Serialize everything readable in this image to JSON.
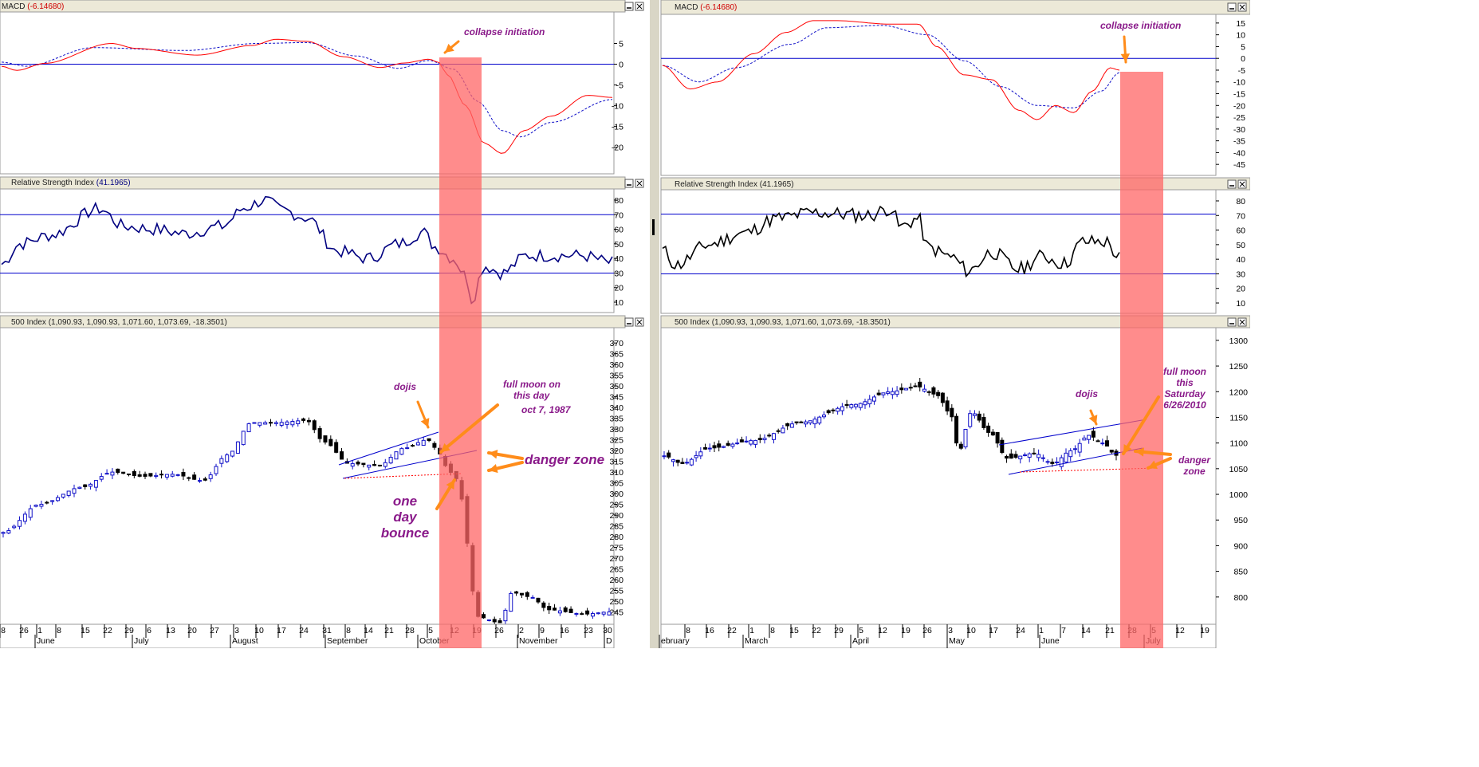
{
  "charts": [
    {
      "id": "left",
      "macd": {
        "title": "MACD",
        "value": "(-6.14680)",
        "yticks": [
          5,
          0,
          -5,
          -10,
          -15,
          -20
        ],
        "ylim": [
          -26,
          12
        ],
        "annotation": "collapse initiation"
      },
      "rsi": {
        "title": "Relative Strength Index",
        "value": "(41.1965)",
        "yticks": [
          80,
          70,
          60,
          50,
          40,
          30,
          20,
          10
        ],
        "ylim": [
          4,
          86
        ],
        "lines": [
          70,
          30
        ]
      },
      "price": {
        "title": "500 Index",
        "ohlc": "(1,090.93, 1,090.93, 1,071.60, 1,073.69, -18.3501)",
        "yticks": [
          370,
          365,
          360,
          355,
          350,
          345,
          340,
          335,
          330,
          325,
          320,
          315,
          310,
          305,
          300,
          295,
          290,
          285,
          280,
          275,
          270,
          265,
          260,
          255,
          250,
          245
        ],
        "ylim": [
          240,
          376
        ],
        "annotations": {
          "dojis": "dojis",
          "fullmoon": [
            "full moon on",
            "this day",
            "oct 7, 1987"
          ],
          "danger": "danger zone",
          "bounce": [
            "one",
            "day",
            "bounce"
          ]
        }
      },
      "xaxis": {
        "days": [
          "8",
          "26",
          "1",
          "8",
          "15",
          "22",
          "29",
          "6",
          "13",
          "20",
          "27",
          "3",
          "10",
          "17",
          "24",
          "31",
          "8",
          "14",
          "21",
          "28",
          "5",
          "12",
          "19",
          "26",
          "2",
          "9",
          "16",
          "23",
          "30"
        ],
        "months": [
          "June",
          "July",
          "August",
          "September",
          "October",
          "November",
          "D"
        ]
      }
    },
    {
      "id": "right",
      "macd": {
        "title": "MACD",
        "value": "(-6.14680)",
        "yticks": [
          15,
          10,
          5,
          0,
          -5,
          -10,
          -15,
          -20,
          -25,
          -30,
          -35,
          -40,
          -45
        ],
        "ylim": [
          -49,
          18
        ],
        "annotation": "collapse initiation"
      },
      "rsi": {
        "title": "Relative Strength Index",
        "value": "(41.1965)",
        "yticks": [
          80,
          70,
          60,
          50,
          40,
          30,
          20,
          10
        ],
        "ylim": [
          4,
          86
        ],
        "lines": [
          71,
          30
        ]
      },
      "price": {
        "title": "500 Index",
        "ohlc": "(1,090.93, 1,090.93, 1,071.60, 1,073.69, -18.3501)",
        "yticks": [
          1300,
          1250,
          1200,
          1150,
          1100,
          1050,
          1000,
          950,
          900,
          850,
          800
        ],
        "ylim": [
          750,
          1320
        ],
        "annotations": {
          "dojis": "dojis",
          "fullmoon": [
            "full moon",
            "this",
            "Saturday",
            "6/26/2010"
          ],
          "danger": [
            "danger",
            "zone"
          ]
        }
      },
      "xaxis": {
        "days": [
          "8",
          "16",
          "22",
          "1",
          "8",
          "15",
          "22",
          "29",
          "5",
          "12",
          "19",
          "26",
          "3",
          "10",
          "17",
          "24",
          "1",
          "7",
          "14",
          "21",
          "28",
          "5",
          "12",
          "19"
        ],
        "months": [
          "ebruary",
          "March",
          "April",
          "May",
          "June",
          "July"
        ]
      }
    }
  ],
  "colors": {
    "up_candle": "#1010c8",
    "down_candle": "#000000",
    "macd_line": "#ff0000",
    "signal_line": "#1010c8",
    "rsi_left": "#000080",
    "rsi_right": "#000000",
    "level_line": "#0000cc",
    "highlight": "#ff6666",
    "arrow": "#ff8c1a",
    "annotation_text": "#8a1a8a"
  }
}
